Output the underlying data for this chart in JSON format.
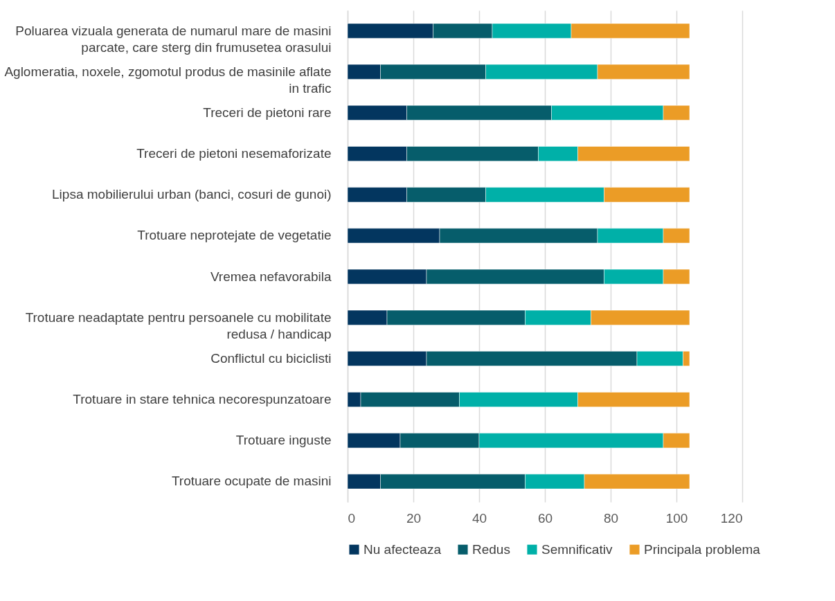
{
  "chart_data": {
    "type": "bar",
    "orientation": "horizontal",
    "stacked": true,
    "categories": [
      "Poluarea vizuala generata de numarul mare de masini parcate, care sterg din frumusetea orasului",
      "Aglomeratia, noxele, zgomotul produs de masinile aflate in trafic",
      "Treceri de pietoni rare",
      "Treceri de pietoni nesemaforizate",
      "Lipsa mobilierului urban (banci, cosuri de gunoi)",
      "Trotuare neprotejate de vegetatie",
      "Vremea nefavorabila",
      "Trotuare neadaptate pentru persoanele cu mobilitate redusa / handicap",
      "Conflictul cu biciclisti",
      "Trotuare in stare tehnica necorespunzatoare",
      "Trotuare inguste",
      "Trotuare ocupate de masini"
    ],
    "series": [
      {
        "name": "Nu afecteaza",
        "color": "#03365f",
        "values": [
          26,
          10,
          18,
          18,
          18,
          28,
          24,
          12,
          24,
          4,
          16,
          10
        ]
      },
      {
        "name": "Redus",
        "color": "#065d6b",
        "values": [
          18,
          32,
          44,
          40,
          24,
          48,
          54,
          42,
          64,
          30,
          24,
          44
        ]
      },
      {
        "name": "Semnificativ",
        "color": "#00b0a8",
        "values": [
          24,
          34,
          34,
          12,
          36,
          20,
          18,
          20,
          14,
          36,
          56,
          18
        ]
      },
      {
        "name": "Principala problema",
        "color": "#eb9c26",
        "values": [
          36,
          28,
          8,
          34,
          26,
          8,
          8,
          30,
          2,
          34,
          8,
          32
        ]
      }
    ],
    "xlim": [
      0,
      120
    ],
    "xticks": [
      0,
      20,
      40,
      60,
      80,
      100,
      120
    ],
    "grid": "x",
    "legend": "bottom"
  }
}
